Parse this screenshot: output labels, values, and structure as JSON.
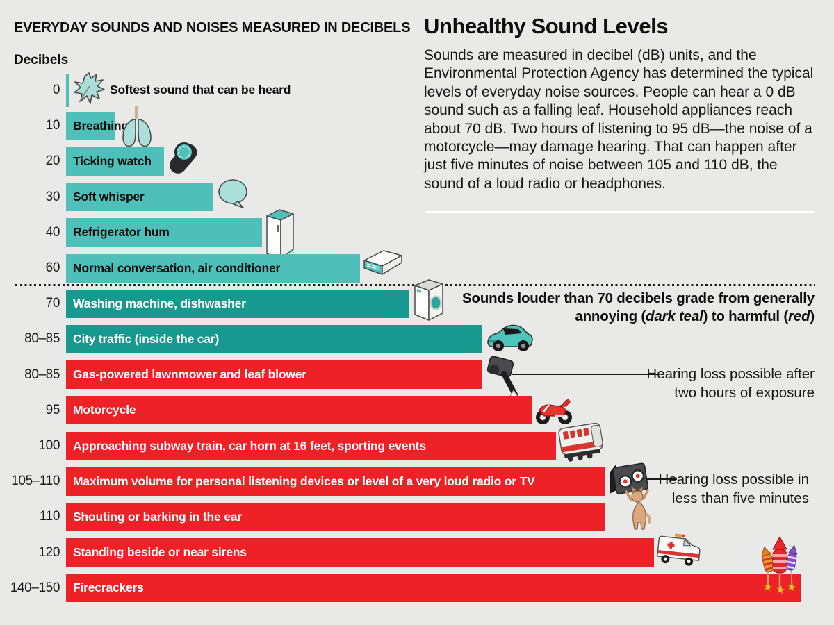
{
  "page": {
    "background": "#E9E9E7"
  },
  "header_left": {
    "title": "EVERYDAY SOUNDS AND NOISES MEASURED IN DECIBELS",
    "axis_label": "Decibels"
  },
  "intro": {
    "title": "Unhealthy Sound Levels",
    "body": "Sounds are measured in decibel (dB) units, and the Environmental Protection Agency has determined the typical levels of everyday noise sources. People can hear a 0 dB sound such as a falling leaf. Household appliances reach about 70 dB. Two hours of listening to 95 dB—the noise of a motorcycle—may damage hearing. That can happen after just five minutes of noise between 105 and 110 dB, the sound of a loud radio or headphones."
  },
  "threshold_note": {
    "line1": "Sounds louder than 70 decibels grade from generally",
    "line2_parts": [
      {
        "t": "annoying ("
      },
      {
        "t": "dark teal",
        "i": true
      },
      {
        "t": ") to harmful ("
      },
      {
        "t": "red",
        "i": true
      },
      {
        "t": ")"
      }
    ]
  },
  "callouts": [
    {
      "lines": [
        "Hearing loss possible after",
        "two hours of exposure"
      ]
    },
    {
      "lines": [
        "Hearing loss possible in",
        "less than five minutes"
      ]
    }
  ],
  "colors": {
    "background": "#E9E9E7",
    "quiet_teal": "#4FC0B9",
    "annoying_dark_teal": "#17998F",
    "harmful_red": "#EE2127",
    "text": "#0d0d0d",
    "bar_text_light": "#FFFFFF"
  },
  "chart_data": {
    "type": "bar",
    "orientation": "horizontal",
    "unit": "dB",
    "xlabel": "Decibels",
    "axis_range": [
      0,
      150
    ],
    "grid": false,
    "legend": "color-coded zones: quiet (teal), annoying (dark teal), harmful (red)",
    "zone_colors": {
      "quiet": "#4FC0B9",
      "annoying": "#17998F",
      "harmful": "#EE2127"
    },
    "divider_after_db": 70,
    "rows": [
      {
        "tick": "0",
        "db_min": 0,
        "db": 0,
        "label": "Softest sound that can be heard",
        "zone": "quiet",
        "icon": "leaf"
      },
      {
        "tick": "10",
        "db_min": 10,
        "db": 10,
        "label": "Breathing",
        "zone": "quiet",
        "icon": "lungs"
      },
      {
        "tick": "20",
        "db_min": 20,
        "db": 20,
        "label": "Ticking watch",
        "zone": "quiet",
        "icon": "watch"
      },
      {
        "tick": "30",
        "db_min": 30,
        "db": 30,
        "label": "Soft whisper",
        "zone": "quiet",
        "icon": "speech-bubble"
      },
      {
        "tick": "40",
        "db_min": 40,
        "db": 40,
        "label": "Refrigerator hum",
        "zone": "quiet",
        "icon": "refrigerator"
      },
      {
        "tick": "60",
        "db_min": 60,
        "db": 60,
        "label": "Normal conversation, air conditioner",
        "zone": "quiet",
        "icon": "air-conditioner"
      },
      {
        "tick": "70",
        "db_min": 70,
        "db": 70,
        "label": "Washing machine, dishwasher",
        "zone": "annoying",
        "icon": "washing-machine"
      },
      {
        "tick": "80–85",
        "db_min": 80,
        "db": 85,
        "label": "City traffic (inside the car)",
        "zone": "annoying",
        "icon": "car"
      },
      {
        "tick": "80–85",
        "db_min": 80,
        "db": 85,
        "label": "Gas-powered lawnmower and leaf blower",
        "zone": "harmful",
        "icon": "leaf-blower"
      },
      {
        "tick": "95",
        "db_min": 95,
        "db": 95,
        "label": "Motorcycle",
        "zone": "harmful",
        "icon": "motorcycle"
      },
      {
        "tick": "100",
        "db_min": 100,
        "db": 100,
        "label": "Approaching subway train, car horn at 16 feet, sporting events",
        "zone": "harmful",
        "icon": "subway-train"
      },
      {
        "tick": "105–110",
        "db_min": 105,
        "db": 110,
        "label": "Maximum volume for personal listening devices or level of a very loud radio or TV",
        "zone": "harmful",
        "icon": "speaker"
      },
      {
        "tick": "110",
        "db_min": 110,
        "db": 110,
        "label": "Shouting or barking in the ear",
        "zone": "harmful",
        "icon": "cat"
      },
      {
        "tick": "120",
        "db_min": 120,
        "db": 120,
        "label": "Standing beside or near sirens",
        "zone": "harmful",
        "icon": "ambulance"
      },
      {
        "tick": "140–150",
        "db_min": 140,
        "db": 150,
        "label": "Firecrackers",
        "zone": "harmful",
        "icon": "firecrackers"
      }
    ]
  }
}
